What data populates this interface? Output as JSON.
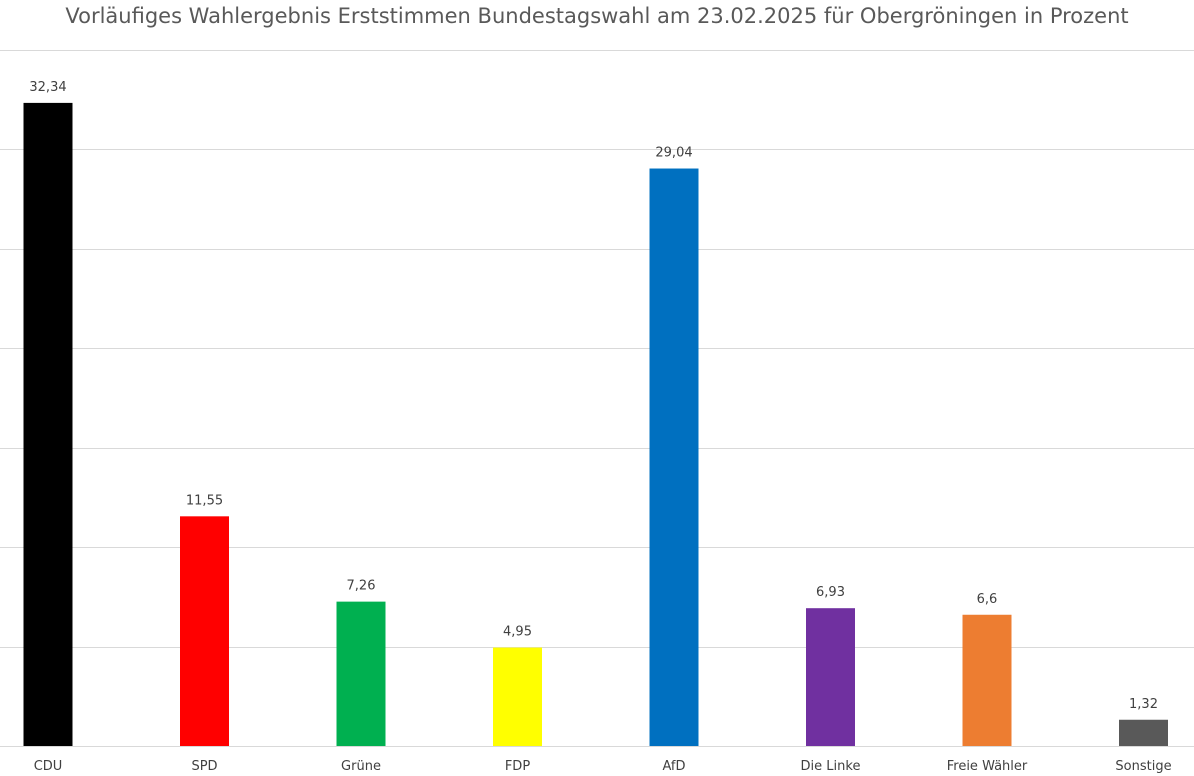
{
  "chart_data": {
    "type": "bar",
    "title": "Vorläufiges Wahlergebnis Erststimmen Bundestagswahl am 23.02.2025 für Obergröningen in Prozent",
    "xlabel": "",
    "ylabel": "",
    "categories": [
      "CDU",
      "SPD",
      "Grüne",
      "FDP",
      "AfD",
      "Die Linke",
      "Freie Wähler",
      "Sonstige"
    ],
    "values": [
      32.34,
      11.55,
      7.26,
      4.95,
      29.04,
      6.93,
      6.6,
      1.32
    ],
    "value_labels": [
      "32,34",
      "11,55",
      "7,26",
      "4,95",
      "29,04",
      "6,93",
      "6,6",
      "1,32"
    ],
    "colors": [
      "#000000",
      "#ff0000",
      "#00b050",
      "#ffff00",
      "#0070c0",
      "#7030a0",
      "#ed7d31",
      "#595959"
    ],
    "ylim": [
      0,
      35
    ],
    "y_grid_step": 5,
    "grid": true,
    "legend": "none"
  }
}
